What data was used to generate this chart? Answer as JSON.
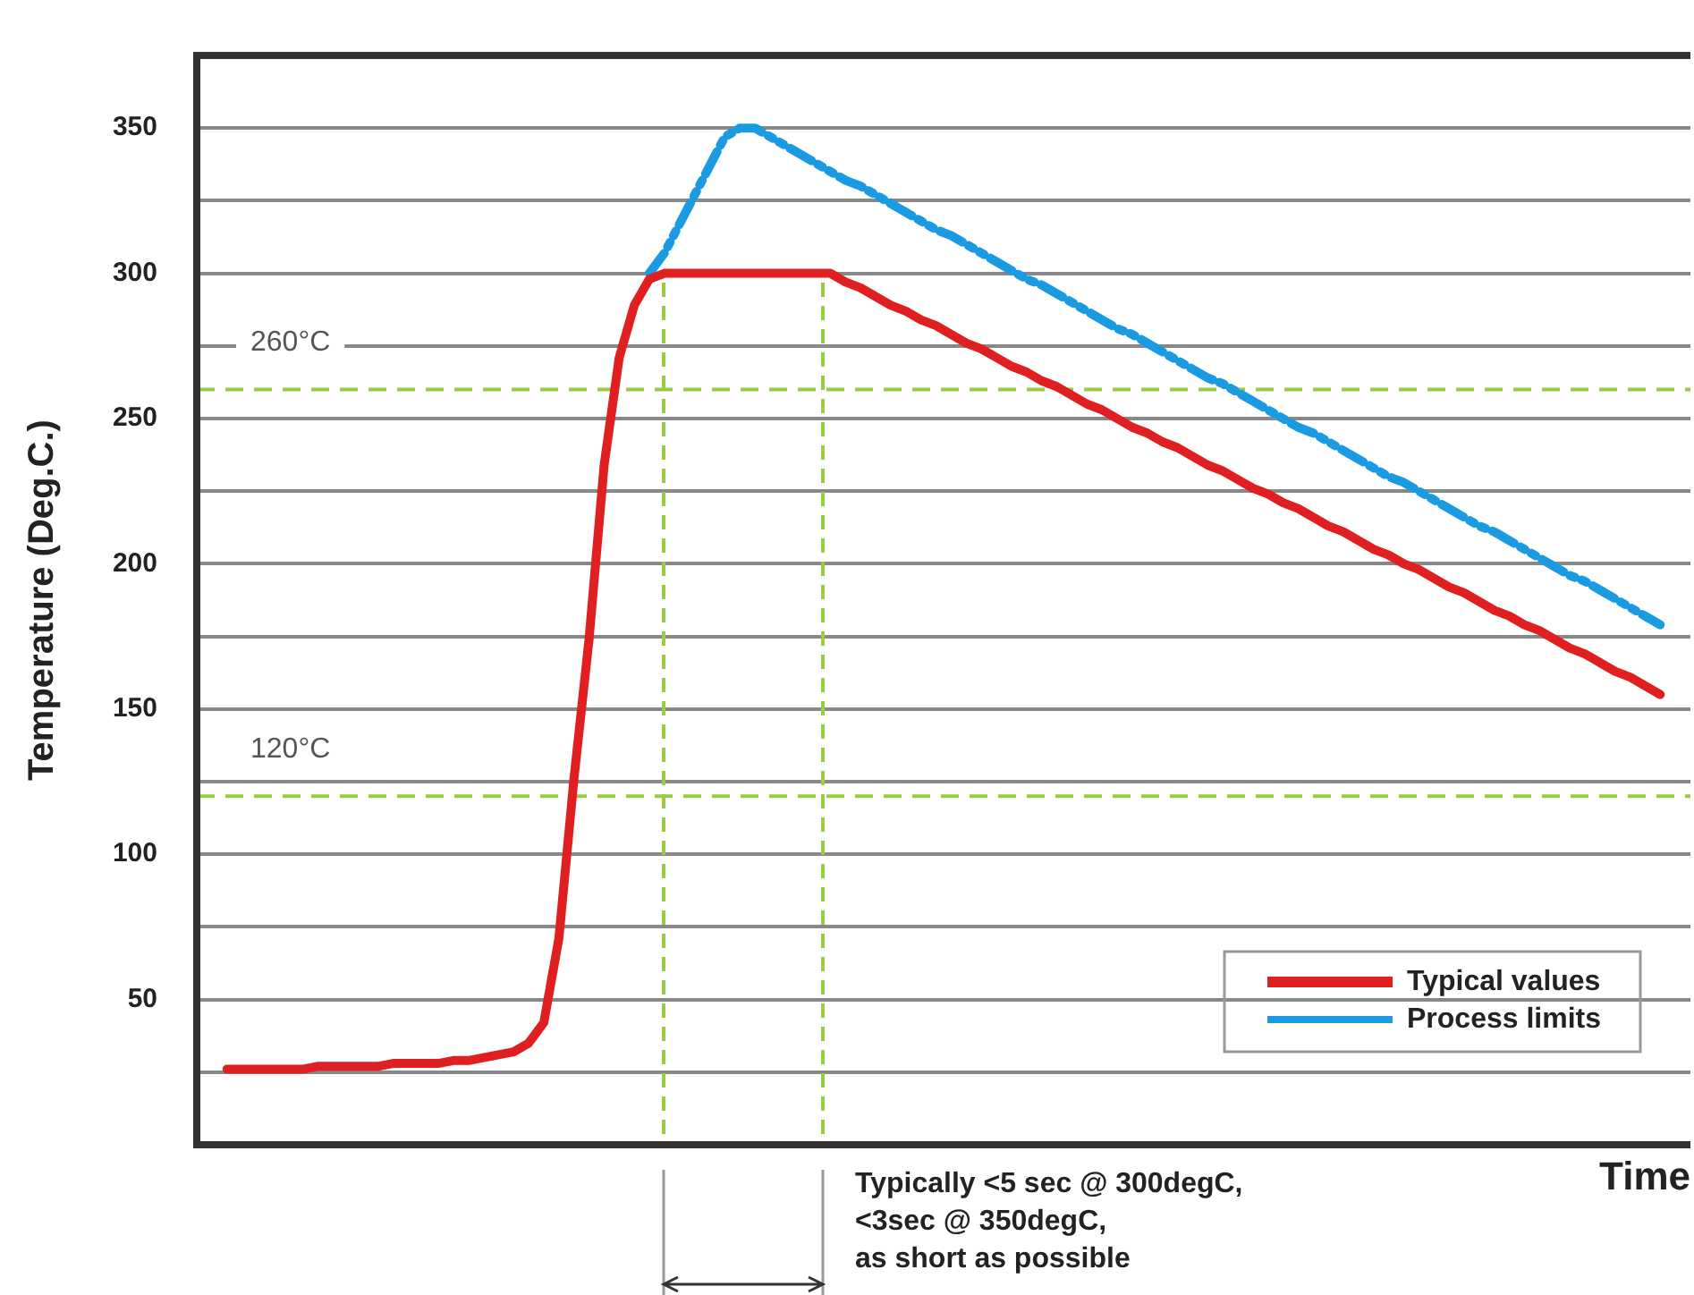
{
  "chart_data": {
    "type": "line",
    "xlabel": "Time",
    "ylabel": "Temperature (Deg.C.)",
    "categories": [
      null,
      null,
      null,
      null,
      null,
      null,
      null,
      null,
      null,
      null,
      null,
      null,
      null,
      null,
      null,
      null,
      null,
      null,
      null,
      null,
      null,
      null,
      null,
      null,
      null,
      null,
      null,
      null,
      null,
      null,
      null,
      null,
      null,
      null,
      null,
      null,
      null,
      null,
      null,
      null,
      null,
      null,
      null,
      null,
      null,
      null,
      null,
      null,
      null,
      null,
      null,
      null,
      null,
      null,
      null,
      null,
      null,
      null,
      null,
      null,
      null,
      null,
      null,
      null,
      null,
      null,
      null,
      null,
      null,
      null,
      null,
      null,
      null,
      null,
      null,
      null,
      null,
      null,
      null,
      null,
      null,
      null,
      null,
      null,
      null,
      null,
      null,
      null,
      null,
      null,
      null,
      null,
      null,
      null,
      null,
      null,
      null,
      null,
      null,
      null
    ],
    "ylim": [
      0,
      375
    ],
    "yticks": [
      {
        "value": 25,
        "label": null
      },
      50,
      {
        "value": 75,
        "label": null
      },
      100,
      {
        "value": 125,
        "label": null
      },
      150,
      {
        "value": 175,
        "label": null
      },
      200,
      {
        "value": 225,
        "label": null
      },
      250,
      {
        "value": 275,
        "label": null
      },
      300,
      {
        "value": 325,
        "label": null
      },
      350
    ],
    "tick_labels": "y",
    "grid": "y",
    "legend": "bottom right",
    "marker": "none",
    "series": [
      {
        "name": "Typical values",
        "color": "#e02020",
        "line_style": "solid",
        "values": [
          null,
          null,
          26,
          26,
          26,
          26,
          26,
          26,
          27,
          27,
          27,
          27,
          27,
          28,
          28,
          28,
          28,
          29,
          29,
          30,
          31,
          32,
          35,
          42,
          71,
          126,
          174,
          234,
          271,
          289,
          298,
          300,
          300,
          300,
          300,
          300,
          300,
          300,
          300,
          300,
          300,
          300,
          300,
          297,
          295,
          292,
          289,
          287,
          284,
          282,
          279,
          276,
          274,
          271,
          268,
          266,
          263,
          261,
          258,
          255,
          253,
          250,
          247,
          245,
          242,
          240,
          237,
          234,
          232,
          229,
          226,
          224,
          221,
          219,
          216,
          213,
          211,
          208,
          205,
          203,
          200,
          198,
          195,
          192,
          190,
          187,
          184,
          182,
          179,
          177,
          174,
          171,
          169,
          166,
          163,
          161,
          158,
          155,
          null,
          null
        ]
      },
      {
        "name": "Process limits",
        "color": "#1a9ae0",
        "line_style": "dashed",
        "values": [
          null,
          null,
          null,
          null,
          null,
          null,
          null,
          null,
          null,
          null,
          null,
          null,
          null,
          null,
          null,
          null,
          null,
          null,
          null,
          null,
          null,
          null,
          null,
          null,
          null,
          null,
          null,
          null,
          null,
          null,
          300,
          307,
          317,
          327,
          337,
          347,
          350,
          350,
          347,
          344,
          341,
          338,
          335,
          332,
          330,
          327,
          324,
          321,
          318,
          315,
          313,
          310,
          307,
          304,
          301,
          298,
          296,
          293,
          290,
          287,
          284,
          281,
          279,
          276,
          273,
          270,
          267,
          264,
          262,
          259,
          256,
          253,
          250,
          247,
          245,
          242,
          239,
          236,
          233,
          230,
          228,
          225,
          222,
          219,
          216,
          213,
          211,
          208,
          205,
          202,
          199,
          196,
          194,
          191,
          188,
          185,
          182,
          179,
          null,
          null
        ]
      }
    ],
    "ref_lines": [
      {
        "axis": "y",
        "value": 260,
        "label": "260°C",
        "color": "#99cc44",
        "line_style": "dashed"
      },
      {
        "axis": "y",
        "value": 120,
        "label": "120°C",
        "color": "#99cc44",
        "line_style": "dashed"
      }
    ],
    "annotations": [
      "Typically <5 sec @ 300degC,\n<3sec @ 350degC,\nas short as possible"
    ]
  }
}
